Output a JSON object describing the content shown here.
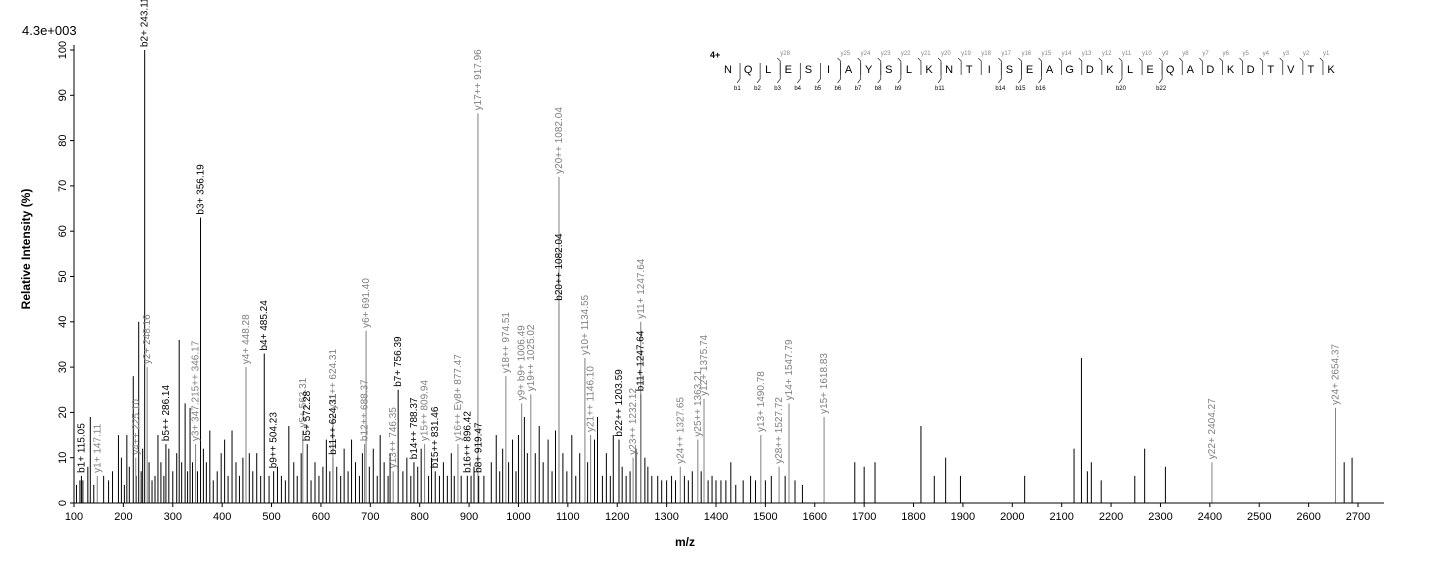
{
  "chart_data": {
    "type": "bar",
    "scale_label": "4.3e+003",
    "xlabel": "m/z",
    "ylabel": "Relative   Intensity (%)",
    "xlim": [
      100,
      2700
    ],
    "ylim": [
      0,
      100
    ],
    "x_ticks": [
      100,
      200,
      300,
      400,
      500,
      600,
      700,
      800,
      900,
      1000,
      1100,
      1200,
      1300,
      1400,
      1500,
      1600,
      1700,
      1800,
      1900,
      2000,
      2100,
      2200,
      2300,
      2400,
      2500,
      2600,
      2700
    ],
    "y_ticks": [
      0,
      10,
      20,
      30,
      40,
      50,
      60,
      70,
      80,
      90,
      100
    ],
    "colors": {
      "b_ion": "#000000",
      "y_ion": "#808080",
      "background_peak": "#000000"
    },
    "labeled_peaks": [
      {
        "mz": 115.05,
        "intensity": 6,
        "label": "b1+ 115.05",
        "series": "b"
      },
      {
        "mz": 147.11,
        "intensity": 6,
        "label": "y1+ 147.11",
        "series": "y"
      },
      {
        "mz": 225.1,
        "intensity": 10,
        "label": "y4++ 225.10",
        "series": "y"
      },
      {
        "mz": 243.11,
        "intensity": 100,
        "label": "b2+ 243.11",
        "series": "b"
      },
      {
        "mz": 248.16,
        "intensity": 30,
        "label": "y2+ 248.16",
        "series": "y"
      },
      {
        "mz": 286.14,
        "intensity": 13,
        "label": "b5++ 286.14",
        "series": "b"
      },
      {
        "mz": 346.17,
        "intensity": 13,
        "label": "y3+ 347.215++ 346.17",
        "series": "y"
      },
      {
        "mz": 356.19,
        "intensity": 63,
        "label": "b3+ 356.19",
        "series": "b"
      },
      {
        "mz": 448.28,
        "intensity": 30,
        "label": "y4+ 448.28",
        "series": "y"
      },
      {
        "mz": 485.24,
        "intensity": 33,
        "label": "b4+ 485.24",
        "series": "b"
      },
      {
        "mz": 504.23,
        "intensity": 7,
        "label": "b9++ 504.23",
        "series": "b"
      },
      {
        "mz": 563.31,
        "intensity": 16,
        "label": "y5+ 563.31",
        "series": "y"
      },
      {
        "mz": 572.28,
        "intensity": 13,
        "label": "b5+ 572.28",
        "series": "b"
      },
      {
        "mz": 624.31,
        "intensity": 10,
        "label": "b11++ 624.31",
        "series": "b"
      },
      {
        "mz": 624.31,
        "intensity": 20,
        "label": "y11++ 624.31",
        "series": "y"
      },
      {
        "mz": 688.37,
        "intensity": 13,
        "label": "b12++ 688.37",
        "series": "y"
      },
      {
        "mz": 691.4,
        "intensity": 38,
        "label": "y6+ 691.40",
        "series": "y"
      },
      {
        "mz": 746.35,
        "intensity": 7,
        "label": "y13++ 746.35",
        "series": "y"
      },
      {
        "mz": 756.39,
        "intensity": 25,
        "label": "b7+ 756.39",
        "series": "b"
      },
      {
        "mz": 788.37,
        "intensity": 9,
        "label": "b14++ 788.37",
        "series": "b"
      },
      {
        "mz": 809.94,
        "intensity": 13,
        "label": "y15++ 809.94",
        "series": "y"
      },
      {
        "mz": 831.46,
        "intensity": 7,
        "label": "b15++ 831.46",
        "series": "b"
      },
      {
        "mz": 877.47,
        "intensity": 13,
        "label": "y16++ Ey8+ 877.47",
        "series": "y"
      },
      {
        "mz": 896.42,
        "intensity": 6,
        "label": "b16++ 896.42",
        "series": "b"
      },
      {
        "mz": 917.96,
        "intensity": 86,
        "label": "y17++ 917.96",
        "series": "y"
      },
      {
        "mz": 919.47,
        "intensity": 6,
        "label": "b8+ 919.47",
        "series": "b"
      },
      {
        "mz": 974.51,
        "intensity": 28,
        "label": "y18++ 974.51",
        "series": "y"
      },
      {
        "mz": 1006.49,
        "intensity": 22,
        "label": "y9+ b9+ 1006.49",
        "series": "y"
      },
      {
        "mz": 1025.02,
        "intensity": 24,
        "label": "y19++ 1025.02",
        "series": "y"
      },
      {
        "mz": 1082.04,
        "intensity": 44,
        "label": "b20++ 1082.04",
        "series": "b"
      },
      {
        "mz": 1082.04,
        "intensity": 72,
        "label": "y20++ 1082.04",
        "series": "y"
      },
      {
        "mz": 1134.55,
        "intensity": 32,
        "label": "y10+ 1134.55",
        "series": "y"
      },
      {
        "mz": 1146.1,
        "intensity": 15,
        "label": "y21++ 1146.10",
        "series": "y"
      },
      {
        "mz": 1203.59,
        "intensity": 14,
        "label": "b22++ 1203.59",
        "series": "b"
      },
      {
        "mz": 1247.64,
        "intensity": 24,
        "label": "b11+ 1247.64",
        "series": "b"
      },
      {
        "mz": 1247.64,
        "intensity": 40,
        "label": "y11+ 1247.64",
        "series": "y"
      },
      {
        "mz": 1232.12,
        "intensity": 10,
        "label": "y23++ 1232.12",
        "series": "y"
      },
      {
        "mz": 1327.65,
        "intensity": 8,
        "label": "y24++ 1327.65",
        "series": "y"
      },
      {
        "mz": 1363.21,
        "intensity": 14,
        "label": "y25++ 1363.21",
        "series": "y"
      },
      {
        "mz": 1375.74,
        "intensity": 23,
        "label": "y12+ 1375.74",
        "series": "y"
      },
      {
        "mz": 1490.78,
        "intensity": 15,
        "label": "y13+ 1490.78",
        "series": "y"
      },
      {
        "mz": 1527.72,
        "intensity": 8,
        "label": "y28++ 1527.72",
        "series": "y"
      },
      {
        "mz": 1547.79,
        "intensity": 22,
        "label": "y14+ 1547.79",
        "series": "y"
      },
      {
        "mz": 1618.83,
        "intensity": 19,
        "label": "y15+ 1618.83",
        "series": "y"
      },
      {
        "mz": 2404.27,
        "intensity": 9,
        "label": "y22+ 2404.27",
        "series": "y"
      },
      {
        "mz": 2654.37,
        "intensity": 21,
        "label": "y24+ 2654.37",
        "series": "y"
      }
    ],
    "unlabeled_peaks": [
      [
        105,
        4
      ],
      [
        112,
        5
      ],
      [
        118,
        5
      ],
      [
        128,
        8
      ],
      [
        133,
        19
      ],
      [
        140,
        4
      ],
      [
        160,
        6
      ],
      [
        170,
        5
      ],
      [
        178,
        7
      ],
      [
        190,
        15
      ],
      [
        196,
        10
      ],
      [
        202,
        4
      ],
      [
        207,
        15
      ],
      [
        212,
        8
      ],
      [
        220,
        28
      ],
      [
        226,
        6
      ],
      [
        231,
        40
      ],
      [
        236,
        7
      ],
      [
        239,
        12
      ],
      [
        252,
        9
      ],
      [
        258,
        5
      ],
      [
        264,
        6
      ],
      [
        270,
        15
      ],
      [
        276,
        9
      ],
      [
        282,
        6
      ],
      [
        292,
        12
      ],
      [
        300,
        7
      ],
      [
        308,
        11
      ],
      [
        313,
        36
      ],
      [
        318,
        9
      ],
      [
        325,
        22
      ],
      [
        330,
        7
      ],
      [
        335,
        21
      ],
      [
        340,
        9
      ],
      [
        350,
        7
      ],
      [
        362,
        12
      ],
      [
        368,
        9
      ],
      [
        375,
        16
      ],
      [
        382,
        5
      ],
      [
        390,
        7
      ],
      [
        398,
        11
      ],
      [
        405,
        14
      ],
      [
        412,
        6
      ],
      [
        420,
        16
      ],
      [
        428,
        9
      ],
      [
        435,
        6
      ],
      [
        442,
        10
      ],
      [
        455,
        11
      ],
      [
        462,
        7
      ],
      [
        470,
        11
      ],
      [
        478,
        6
      ],
      [
        495,
        6
      ],
      [
        512,
        8
      ],
      [
        520,
        6
      ],
      [
        528,
        5
      ],
      [
        535,
        17
      ],
      [
        545,
        9
      ],
      [
        552,
        6
      ],
      [
        560,
        11
      ],
      [
        580,
        5
      ],
      [
        588,
        9
      ],
      [
        596,
        6
      ],
      [
        604,
        8
      ],
      [
        611,
        14
      ],
      [
        618,
        7
      ],
      [
        632,
        8
      ],
      [
        640,
        6
      ],
      [
        647,
        12
      ],
      [
        655,
        7
      ],
      [
        662,
        14
      ],
      [
        670,
        9
      ],
      [
        678,
        6
      ],
      [
        684,
        11
      ],
      [
        698,
        8
      ],
      [
        706,
        12
      ],
      [
        714,
        6
      ],
      [
        720,
        15
      ],
      [
        728,
        9
      ],
      [
        736,
        6
      ],
      [
        740,
        11
      ],
      [
        766,
        7
      ],
      [
        774,
        10
      ],
      [
        782,
        6
      ],
      [
        796,
        8
      ],
      [
        803,
        12
      ],
      [
        818,
        6
      ],
      [
        824,
        10
      ],
      [
        840,
        6
      ],
      [
        848,
        9
      ],
      [
        856,
        6
      ],
      [
        864,
        11
      ],
      [
        870,
        6
      ],
      [
        884,
        6
      ],
      [
        904,
        6
      ],
      [
        910,
        8
      ],
      [
        930,
        6
      ],
      [
        945,
        9
      ],
      [
        955,
        15
      ],
      [
        962,
        7
      ],
      [
        968,
        12
      ],
      [
        980,
        9
      ],
      [
        988,
        14
      ],
      [
        995,
        7
      ],
      [
        1000,
        15
      ],
      [
        1012,
        19
      ],
      [
        1018,
        11
      ],
      [
        1034,
        11
      ],
      [
        1042,
        17
      ],
      [
        1050,
        9
      ],
      [
        1060,
        14
      ],
      [
        1068,
        7
      ],
      [
        1075,
        16
      ],
      [
        1090,
        11
      ],
      [
        1098,
        7
      ],
      [
        1108,
        15
      ],
      [
        1116,
        6
      ],
      [
        1124,
        11
      ],
      [
        1140,
        9
      ],
      [
        1154,
        14
      ],
      [
        1160,
        19
      ],
      [
        1170,
        6
      ],
      [
        1178,
        11
      ],
      [
        1186,
        6
      ],
      [
        1192,
        15
      ],
      [
        1210,
        8
      ],
      [
        1218,
        6
      ],
      [
        1226,
        7
      ],
      [
        1238,
        12
      ],
      [
        1256,
        10
      ],
      [
        1262,
        8
      ],
      [
        1270,
        6
      ],
      [
        1282,
        6
      ],
      [
        1290,
        5
      ],
      [
        1300,
        5
      ],
      [
        1310,
        6
      ],
      [
        1318,
        5
      ],
      [
        1336,
        6
      ],
      [
        1344,
        5
      ],
      [
        1352,
        7
      ],
      [
        1370,
        7
      ],
      [
        1384,
        5
      ],
      [
        1392,
        6
      ],
      [
        1400,
        5
      ],
      [
        1410,
        5
      ],
      [
        1420,
        5
      ],
      [
        1430,
        9
      ],
      [
        1440,
        4
      ],
      [
        1455,
        5
      ],
      [
        1470,
        6
      ],
      [
        1480,
        5
      ],
      [
        1500,
        5
      ],
      [
        1512,
        6
      ],
      [
        1540,
        6
      ],
      [
        1560,
        5
      ],
      [
        1575,
        4
      ],
      [
        1681,
        9
      ],
      [
        1700,
        8
      ],
      [
        1722,
        9
      ],
      [
        1815,
        17
      ],
      [
        1842,
        6
      ],
      [
        1865,
        10
      ],
      [
        1895,
        6
      ],
      [
        2025,
        6
      ],
      [
        2125,
        12
      ],
      [
        2140,
        32
      ],
      [
        2152,
        7
      ],
      [
        2160,
        9
      ],
      [
        2180,
        5
      ],
      [
        2248,
        6
      ],
      [
        2268,
        12
      ],
      [
        2310,
        8
      ],
      [
        2672,
        9
      ],
      [
        2688,
        10
      ]
    ],
    "sequence": {
      "charge": "4+",
      "residues": [
        "N",
        "Q",
        "L",
        "E",
        "S",
        "I",
        "A",
        "Y",
        "S",
        "L",
        "K",
        "N",
        "T",
        "I",
        "S",
        "E",
        "A",
        "G",
        "D",
        "K",
        "L",
        "E",
        "Q",
        "A",
        "D",
        "K",
        "D",
        "T",
        "V",
        "T",
        "K"
      ],
      "y_labels": [
        "y28",
        "",
        "",
        "y25",
        "y24",
        "y23",
        "y22",
        "y21",
        "y20",
        "y19",
        "y18",
        "y17",
        "y16",
        "y15",
        "y14",
        "y13",
        "y12",
        "y11",
        "y10",
        "y9",
        "y8",
        "y7",
        "y6",
        "y5",
        "y4",
        "y3",
        "y2",
        "y1"
      ],
      "b_labels": [
        "b1",
        "b2",
        "b3",
        "b4",
        "b5",
        "b6",
        "b7",
        "b8",
        "b9",
        "b11",
        "b14",
        "b15",
        "b16",
        "b20",
        "b22"
      ]
    }
  }
}
